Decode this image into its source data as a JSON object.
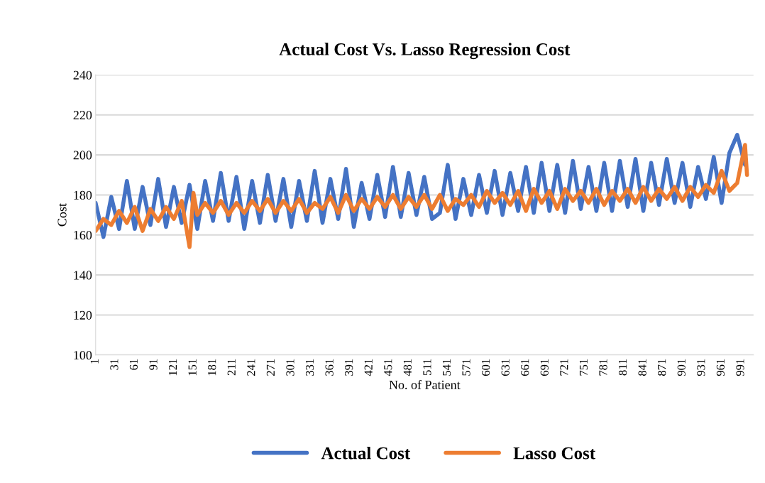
{
  "chart_data": {
    "type": "line",
    "title": "Actual Cost Vs. Lasso Regression Cost",
    "xlabel": "No. of Patient",
    "ylabel": "Cost",
    "xlim": [
      1,
      1010
    ],
    "xticks": [
      1,
      31,
      61,
      91,
      121,
      151,
      181,
      211,
      241,
      271,
      301,
      331,
      361,
      391,
      421,
      451,
      481,
      511,
      541,
      571,
      601,
      631,
      661,
      691,
      721,
      751,
      781,
      811,
      841,
      871,
      901,
      931,
      961,
      991
    ],
    "ylim": [
      100,
      240
    ],
    "yticks": [
      100,
      120,
      140,
      160,
      180,
      200,
      220,
      240
    ],
    "grid": "y",
    "legend": "bottom",
    "marker": "none",
    "line_style": "solid",
    "series": [
      {
        "name": "Actual Cost",
        "color": "#4472c4",
        "x": [
          1,
          13,
          25,
          37,
          49,
          61,
          73,
          85,
          97,
          109,
          121,
          133,
          145,
          157,
          169,
          181,
          193,
          205,
          217,
          229,
          241,
          253,
          265,
          277,
          289,
          301,
          313,
          325,
          337,
          349,
          361,
          373,
          385,
          397,
          409,
          421,
          433,
          445,
          457,
          469,
          481,
          493,
          505,
          517,
          529,
          541,
          553,
          565,
          577,
          589,
          601,
          613,
          625,
          637,
          649,
          661,
          673,
          685,
          697,
          709,
          721,
          733,
          745,
          757,
          769,
          781,
          793,
          805,
          817,
          829,
          841,
          853,
          865,
          877,
          889,
          901,
          913,
          925,
          937,
          949,
          961,
          973,
          985,
          997
        ],
        "values": [
          176,
          159,
          179,
          163,
          187,
          163,
          184,
          165,
          188,
          164,
          184,
          166,
          185,
          163,
          187,
          167,
          191,
          167,
          189,
          163,
          187,
          166,
          190,
          167,
          188,
          164,
          187,
          167,
          192,
          166,
          188,
          168,
          193,
          164,
          186,
          168,
          190,
          169,
          194,
          169,
          191,
          170,
          189,
          168,
          171,
          195,
          168,
          188,
          170,
          190,
          171,
          192,
          170,
          191,
          172,
          194,
          171,
          196,
          172,
          195,
          171,
          197,
          173,
          194,
          172,
          196,
          172,
          197,
          174,
          198,
          172,
          196,
          175,
          198,
          176,
          196,
          174,
          194,
          178,
          199,
          176,
          201,
          210,
          195
        ]
      },
      {
        "name": "Lasso Cost",
        "color": "#ed7d31",
        "x": [
          1,
          13,
          25,
          37,
          49,
          61,
          73,
          85,
          97,
          109,
          121,
          133,
          145,
          151,
          157,
          169,
          181,
          193,
          205,
          217,
          229,
          241,
          253,
          265,
          277,
          289,
          301,
          313,
          325,
          337,
          349,
          361,
          373,
          385,
          397,
          409,
          421,
          433,
          445,
          457,
          469,
          481,
          493,
          505,
          517,
          529,
          541,
          553,
          565,
          577,
          589,
          601,
          613,
          625,
          637,
          649,
          661,
          673,
          685,
          697,
          709,
          721,
          733,
          745,
          757,
          769,
          781,
          793,
          805,
          817,
          829,
          841,
          853,
          865,
          877,
          889,
          901,
          913,
          925,
          937,
          949,
          961,
          973,
          985,
          997,
          1000
        ],
        "values": [
          162,
          168,
          165,
          172,
          166,
          174,
          162,
          173,
          167,
          174,
          168,
          177,
          154,
          181,
          170,
          176,
          171,
          177,
          170,
          176,
          171,
          177,
          172,
          178,
          171,
          177,
          172,
          178,
          171,
          176,
          173,
          179,
          171,
          180,
          172,
          178,
          173,
          179,
          174,
          180,
          173,
          179,
          174,
          180,
          173,
          180,
          172,
          178,
          175,
          180,
          174,
          182,
          176,
          181,
          175,
          182,
          172,
          183,
          176,
          182,
          173,
          183,
          177,
          182,
          176,
          183,
          175,
          182,
          177,
          183,
          176,
          184,
          177,
          183,
          178,
          184,
          177,
          184,
          179,
          185,
          181,
          192,
          182,
          186,
          205,
          190
        ]
      }
    ]
  }
}
